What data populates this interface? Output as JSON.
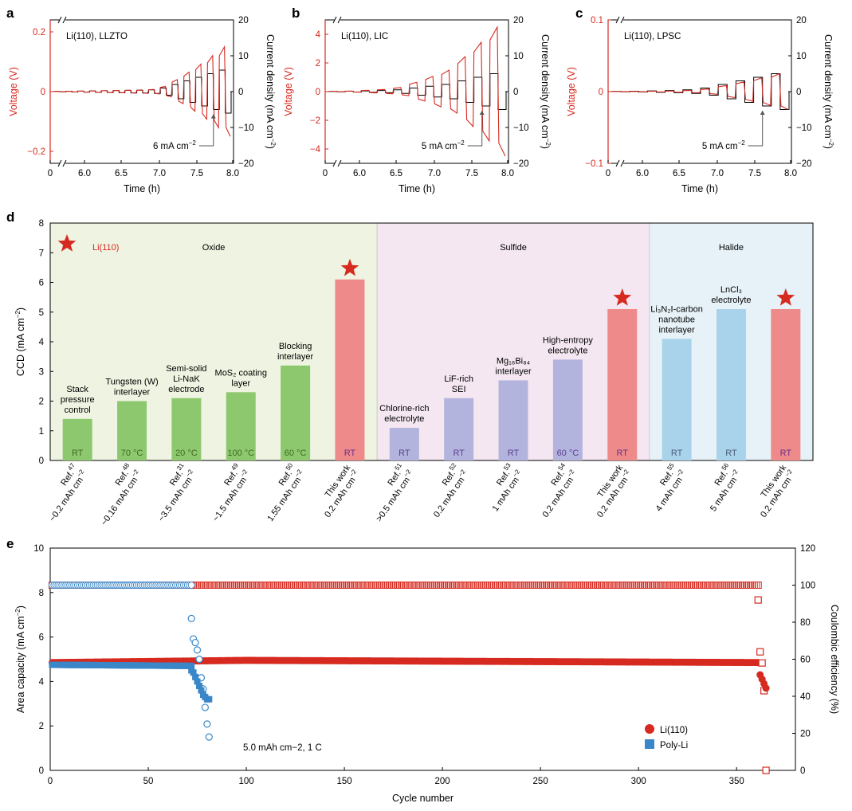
{
  "panel_labels": {
    "a": "a",
    "b": "b",
    "c": "c",
    "d": "d",
    "e": "e"
  },
  "colors": {
    "red": "#d62a20",
    "black": "#000000",
    "oxide_bg": "#eef4e1",
    "sulfide_bg": "#f4e7f1",
    "halide_bg": "#e7f2f8",
    "oxide_bar": "#8dc86e",
    "sulfide_bar": "#b3b4de",
    "halide_bar": "#a9d3ea",
    "this_work_bar": "#ee8a8a",
    "poly_li": "#3a87c8"
  },
  "chart_data": [
    {
      "type": "line",
      "panel": "a",
      "annotation": "Li(110), LLZTO",
      "arrow_label": "6 mA cm−2",
      "xlabel": "Time (h)",
      "xticks": [
        "0",
        "6.0",
        "6.5",
        "7.0",
        "7.5",
        "8.0"
      ],
      "ylabel_left": "Voltage (V)",
      "yticks_left": [
        "−0.2",
        "0",
        "0.2"
      ],
      "ylim_left": [
        -0.24,
        0.24
      ],
      "ylabel_right": "Current density (mA cm−2)",
      "yticks_right": [
        "−20",
        "−10",
        "0",
        "10",
        "20"
      ],
      "ylim_right": [
        -20,
        20
      ],
      "steps": [
        0.05,
        0.1,
        0.15,
        0.2,
        0.25,
        0.3,
        0.35,
        0.4,
        0.5,
        1,
        2,
        3,
        4,
        5,
        6
      ],
      "voltage_max": 0.15
    },
    {
      "type": "line",
      "panel": "b",
      "annotation": "Li(110), LIC",
      "arrow_label": "5 mA cm−2",
      "xlabel": "Time (h)",
      "xticks": [
        "0",
        "6.0",
        "6.5",
        "7.0",
        "7.5",
        "8.0"
      ],
      "ylabel_left": "Voltage (V)",
      "yticks_left": [
        "−4",
        "−2",
        "0",
        "2",
        "4"
      ],
      "ylim_left": [
        -5,
        5
      ],
      "ylabel_right": "Current density (mA cm−2)",
      "yticks_right": [
        "−20",
        "−10",
        "0",
        "10",
        "20"
      ],
      "ylim_right": [
        -20,
        20
      ],
      "steps": [
        0.05,
        0.1,
        0.2,
        0.3,
        0.5,
        1,
        1.5,
        2,
        3,
        4,
        5
      ],
      "voltage_max": 4.5
    },
    {
      "type": "line",
      "panel": "c",
      "annotation": "Li(110), LPSC",
      "arrow_label": "5 mA cm−2",
      "xlabel": "Time (h)",
      "xticks": [
        "0",
        "6.0",
        "6.5",
        "7.0",
        "7.5",
        "8.0"
      ],
      "ylabel_left": "Voltage (V)",
      "yticks_left": [
        "−0.1",
        "0",
        "0.1"
      ],
      "ylim_left": [
        -0.1,
        0.1
      ],
      "ylabel_right": "Current density (mA cm−2)",
      "yticks_right": [
        "−20",
        "−10",
        "0",
        "10",
        "20"
      ],
      "ylim_right": [
        -20,
        20
      ],
      "steps": [
        0.05,
        0.1,
        0.2,
        0.3,
        0.5,
        1,
        2,
        3,
        4,
        5
      ],
      "voltage_max": 0.025
    },
    {
      "type": "bar",
      "panel": "d",
      "ylabel": "CCD (mA cm−2)",
      "ylim": [
        0,
        8
      ],
      "yticks": [
        "0",
        "1",
        "2",
        "3",
        "4",
        "5",
        "6",
        "7",
        "8"
      ],
      "legend": "Li(110)",
      "groups": [
        {
          "name": "Oxide",
          "start": 0,
          "end": 6
        },
        {
          "name": "Sulfide",
          "start": 6,
          "end": 11
        },
        {
          "name": "Halide",
          "start": 11,
          "end": 14
        }
      ],
      "bars": [
        {
          "value": 1.4,
          "temp": "RT",
          "label": [
            "Stack",
            "pressure",
            "control"
          ],
          "ref": "Ref.",
          "sup": "47",
          "sub": "~0.2 mAh cm−2",
          "group": "oxide"
        },
        {
          "value": 2.0,
          "temp": "70 °C",
          "label": [
            "Tungsten (W)",
            "interlayer"
          ],
          "ref": "Ref.",
          "sup": "48",
          "sub": "~0.16 mAh cm−2",
          "group": "oxide"
        },
        {
          "value": 2.1,
          "temp": "20 °C",
          "label": [
            "Semi-solid",
            "Li-NaK",
            "electrode"
          ],
          "ref": "Ref.",
          "sup": "31",
          "sub": "~3.5 mAh cm−2",
          "group": "oxide"
        },
        {
          "value": 2.3,
          "temp": "100 °C",
          "label": [
            "MoS₂ coating",
            "layer"
          ],
          "ref": "Ref.",
          "sup": "49",
          "sub": "~1.5 mAh cm−2",
          "group": "oxide"
        },
        {
          "value": 3.2,
          "temp": "60 °C",
          "label": [
            "Blocking",
            "interlayer"
          ],
          "ref": "Ref.",
          "sup": "50",
          "sub": "1.55 mAh cm−2",
          "group": "oxide"
        },
        {
          "value": 6.1,
          "temp": "RT",
          "label": [],
          "ref": "This work",
          "sup": "",
          "sub": "0.2 mAh cm−2",
          "group": "this",
          "star": true
        },
        {
          "value": 1.1,
          "temp": "RT",
          "label": [
            "Chlorine-rich",
            "electrolyte"
          ],
          "ref": "Ref.",
          "sup": "51",
          "sub": ">0.5 mAh cm−2",
          "group": "sulfide"
        },
        {
          "value": 2.1,
          "temp": "RT",
          "label": [
            "LiF-rich",
            "SEI"
          ],
          "ref": "Ref.",
          "sup": "52",
          "sub": "0.2 mAh cm−2",
          "group": "sulfide"
        },
        {
          "value": 2.7,
          "temp": "RT",
          "label": [
            "Mg₁₆Bi₈₄",
            "interlayer"
          ],
          "ref": "Ref.",
          "sup": "53",
          "sub": "1 mAh cm−2",
          "group": "sulfide"
        },
        {
          "value": 3.4,
          "temp": "60 °C",
          "label": [
            "High-entropy",
            "electrolyte"
          ],
          "ref": "Ref.",
          "sup": "54",
          "sub": "0.2 mAh cm−2",
          "group": "sulfide"
        },
        {
          "value": 5.1,
          "temp": "RT",
          "label": [],
          "ref": "This work",
          "sup": "",
          "sub": "0.2 mAh cm−2",
          "group": "this",
          "star": true
        },
        {
          "value": 4.1,
          "temp": "RT",
          "label": [
            "Li₃N₂I-carbon",
            "nanotube",
            "interlayer"
          ],
          "ref": "Ref.",
          "sup": "55",
          "sub": "4 mAh cm−2",
          "group": "halide"
        },
        {
          "value": 5.1,
          "temp": "RT",
          "label": [
            "LnCl₃",
            "electrolyte"
          ],
          "ref": "Ref.",
          "sup": "56",
          "sub": "5 mAh cm−2",
          "group": "halide"
        },
        {
          "value": 5.1,
          "temp": "RT",
          "label": [],
          "ref": "This work",
          "sup": "",
          "sub": "0.2 mAh cm−2",
          "group": "this",
          "star": true
        }
      ]
    },
    {
      "type": "scatter",
      "panel": "e",
      "xlabel": "Cycle number",
      "xlim": [
        0,
        380
      ],
      "xticks": [
        "0",
        "50",
        "100",
        "150",
        "200",
        "250",
        "300",
        "350"
      ],
      "ylabel_left": "Area capacity (mA cm−2)",
      "ylim_left": [
        0,
        10
      ],
      "yticks_left": [
        "0",
        "2",
        "4",
        "6",
        "8",
        "10"
      ],
      "ylabel_right": "Coulombic efficiency (%)",
      "ylim_right": [
        0,
        120
      ],
      "yticks_right": [
        "0",
        "20",
        "40",
        "60",
        "80",
        "100",
        "120"
      ],
      "annotation": "5.0 mAh cm−2, 1 C",
      "series": [
        {
          "name": "Li(110)",
          "color": "#d62a20",
          "capacity_start": 4.85,
          "capacity_mid": 4.95,
          "capacity_end": 4.85,
          "ce": 100,
          "cycles": 365,
          "tail_capacity": [
            [
              362,
              4.3
            ],
            [
              363,
              4.1
            ],
            [
              364,
              3.9
            ],
            [
              365,
              3.7
            ]
          ],
          "tail_ce": [
            [
              361,
              92
            ],
            [
              362,
              64
            ],
            [
              363,
              58
            ],
            [
              364,
              43
            ],
            [
              365,
              0
            ]
          ]
        },
        {
          "name": "Poly-Li",
          "color": "#3a87c8",
          "capacity_start": 4.75,
          "capacity_mid": 4.7,
          "ce": 100,
          "cycles": 72,
          "tail_capacity": [
            [
              72,
              4.5
            ],
            [
              73,
              4.4
            ],
            [
              74,
              4.2
            ],
            [
              75,
              4.0
            ],
            [
              76,
              3.8
            ],
            [
              77,
              3.6
            ],
            [
              78,
              3.4
            ],
            [
              79,
              3.3
            ],
            [
              80,
              3.2
            ],
            [
              81,
              3.2
            ]
          ],
          "tail_ce": [
            [
              72,
              82
            ],
            [
              73,
              71
            ],
            [
              74,
              69
            ],
            [
              75,
              65
            ],
            [
              76,
              60
            ],
            [
              77,
              50
            ],
            [
              78,
              44
            ],
            [
              79,
              34
            ],
            [
              80,
              25
            ],
            [
              81,
              18
            ]
          ]
        }
      ]
    }
  ]
}
